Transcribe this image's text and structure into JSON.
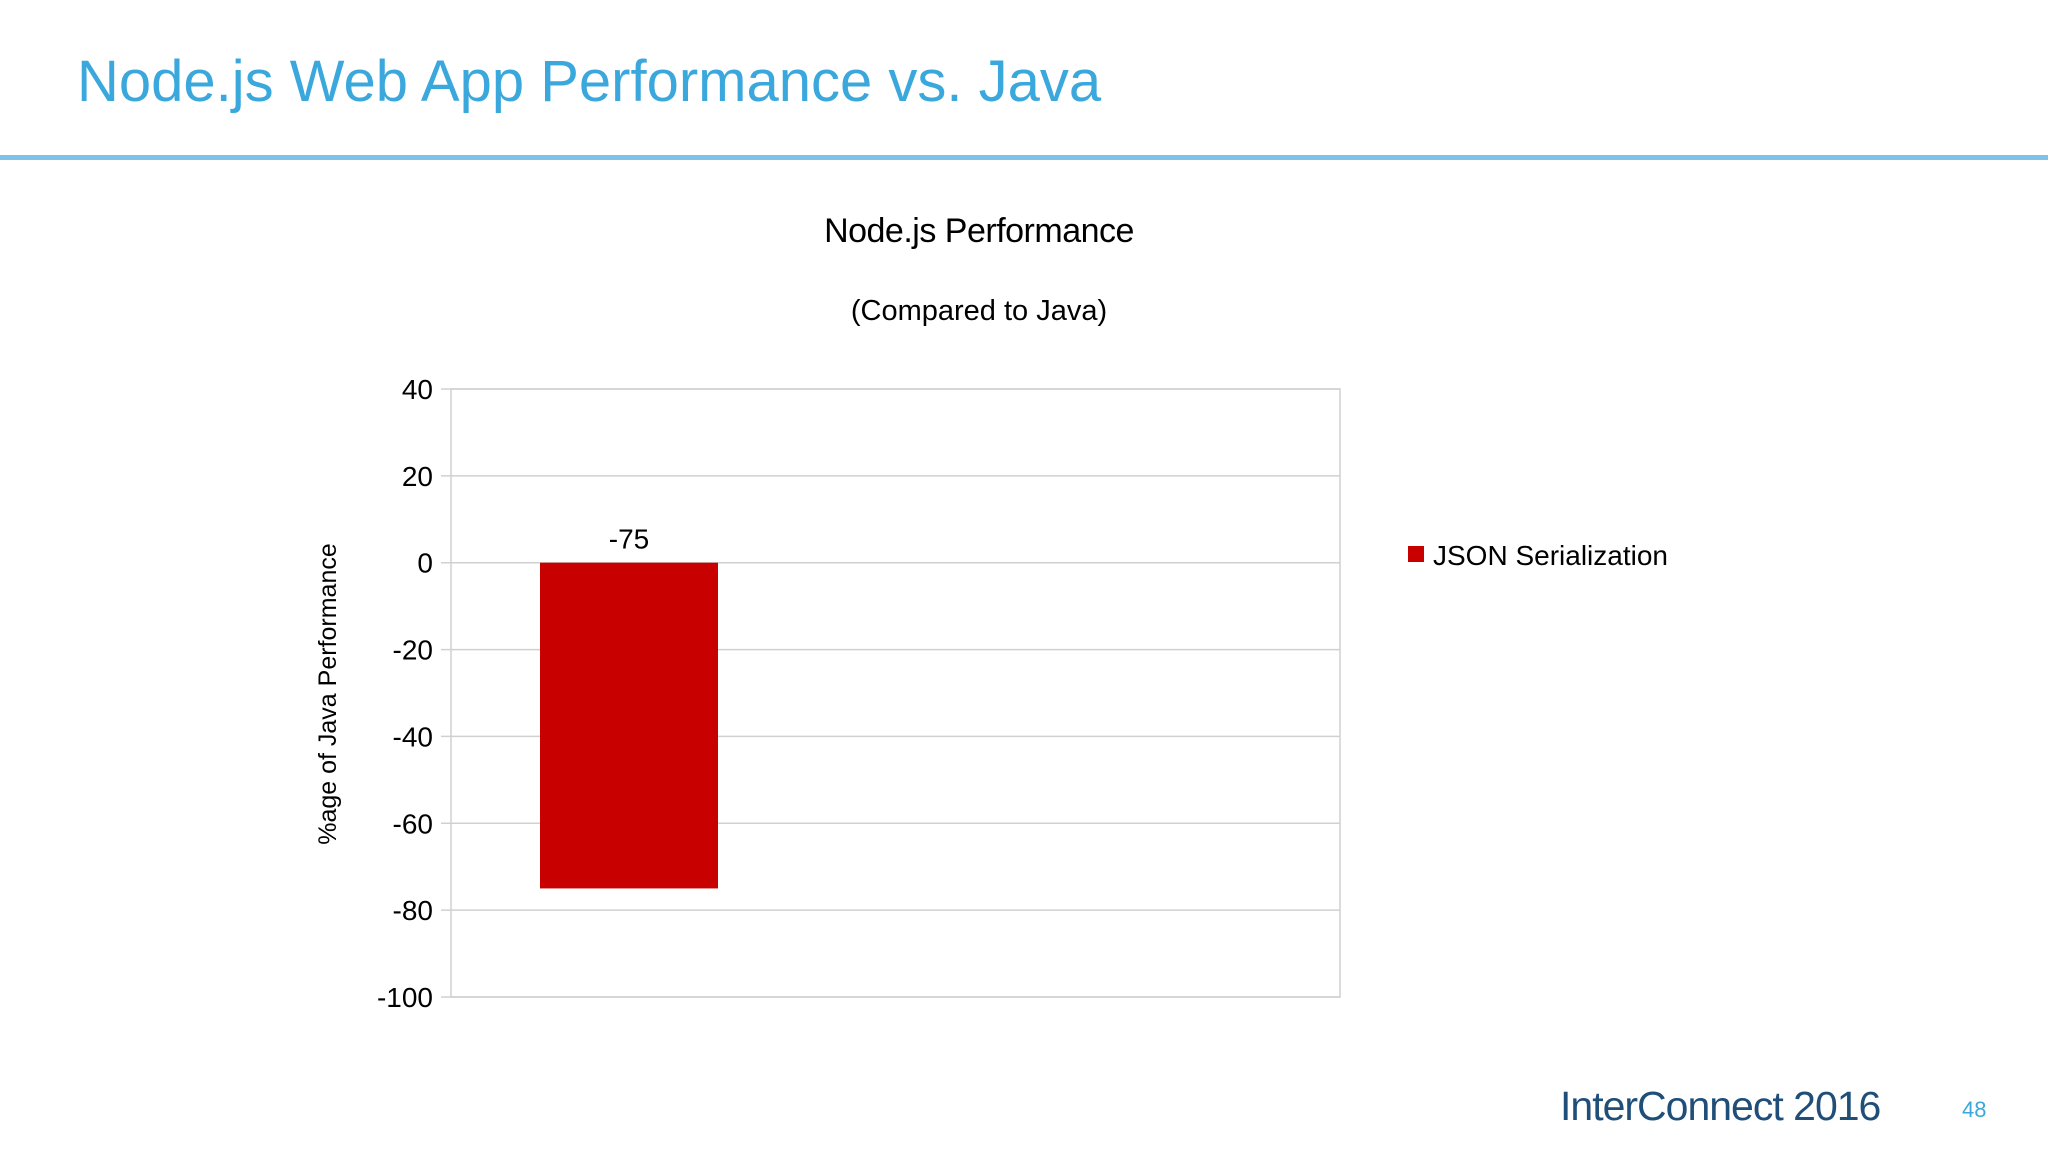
{
  "slide": {
    "title": "Node.js Web App Performance vs. Java",
    "footer_brand": "InterConnect 2016",
    "page_number": "48"
  },
  "chart_data": {
    "type": "bar",
    "title": "Node.js Performance",
    "subtitle": "(Compared to Java)",
    "ylabel": "%age of Java Performance",
    "xlabel": "",
    "ylim": [
      -100,
      40
    ],
    "yticks": [
      40,
      20,
      0,
      -20,
      -40,
      -60,
      -80,
      -100
    ],
    "grid": true,
    "legend_position": "right",
    "series": [
      {
        "name": "JSON Serialization",
        "values": [
          -75
        ],
        "data_labels": [
          "-75"
        ],
        "color": "#c80000"
      }
    ]
  }
}
